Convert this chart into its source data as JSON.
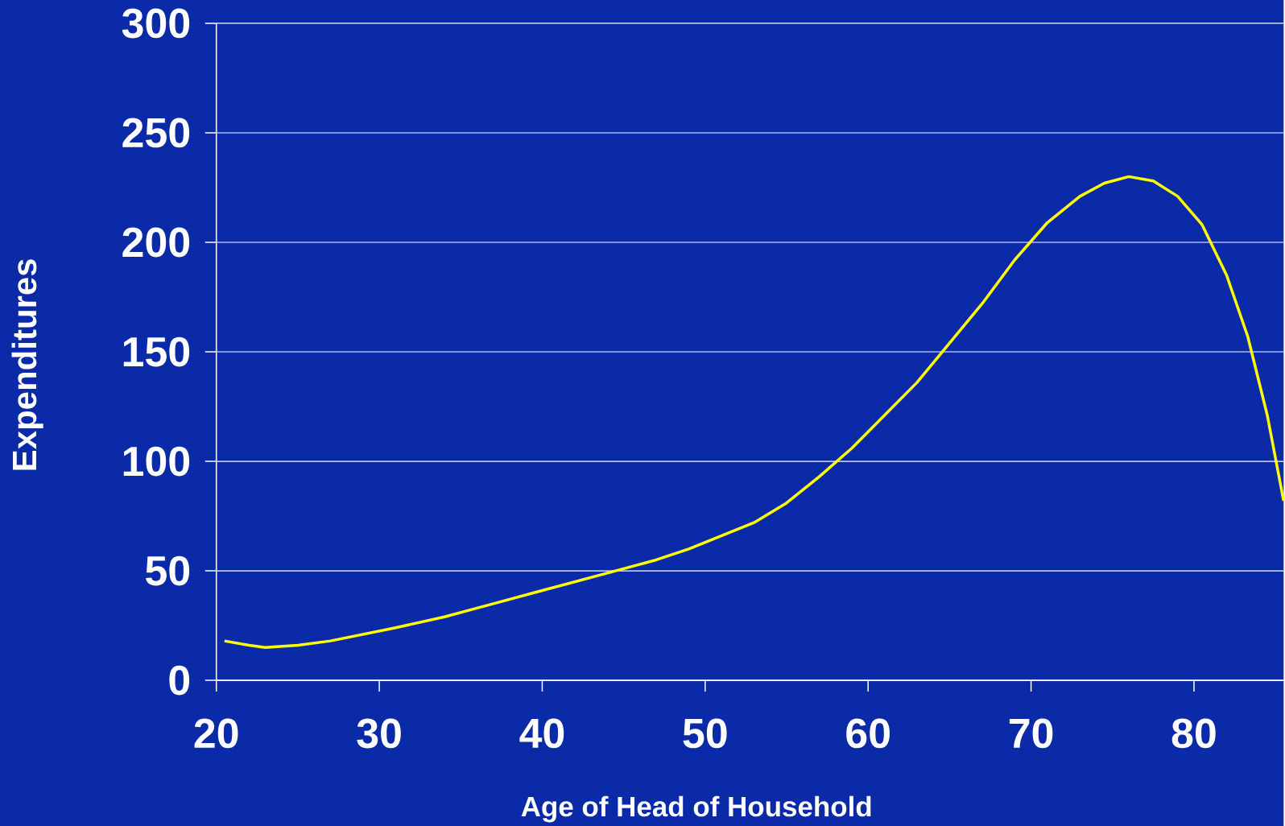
{
  "chart_data": {
    "type": "line",
    "xlabel": "Age of Head of Household",
    "ylabel": "Expenditures",
    "x": [
      20.5,
      22,
      23,
      25,
      27,
      29,
      31,
      34,
      37,
      40,
      43,
      45,
      47,
      49,
      51,
      53,
      55,
      57,
      59,
      61,
      63,
      65,
      67,
      69,
      71,
      73,
      74.5,
      76,
      77.5,
      79,
      80.5,
      82,
      83.3,
      84.5,
      85.5
    ],
    "series": [
      {
        "color": "#ffff00",
        "values": [
          18,
          16,
          15,
          16,
          18,
          21,
          24,
          29,
          35,
          41,
          47,
          51,
          55,
          60,
          66,
          72,
          81,
          93,
          106,
          121,
          136,
          154,
          172,
          192,
          209,
          221,
          227,
          230,
          228,
          221,
          208,
          185,
          157,
          121,
          82
        ]
      }
    ],
    "xlim": [
      20,
      85.5
    ],
    "xticks": [
      20,
      30,
      40,
      50,
      60,
      70,
      80
    ],
    "ylim": [
      0,
      300
    ],
    "yticks": [
      0,
      50,
      100,
      150,
      200,
      250,
      300
    ],
    "grid": "y",
    "marker": "none",
    "line_style": "solid"
  }
}
